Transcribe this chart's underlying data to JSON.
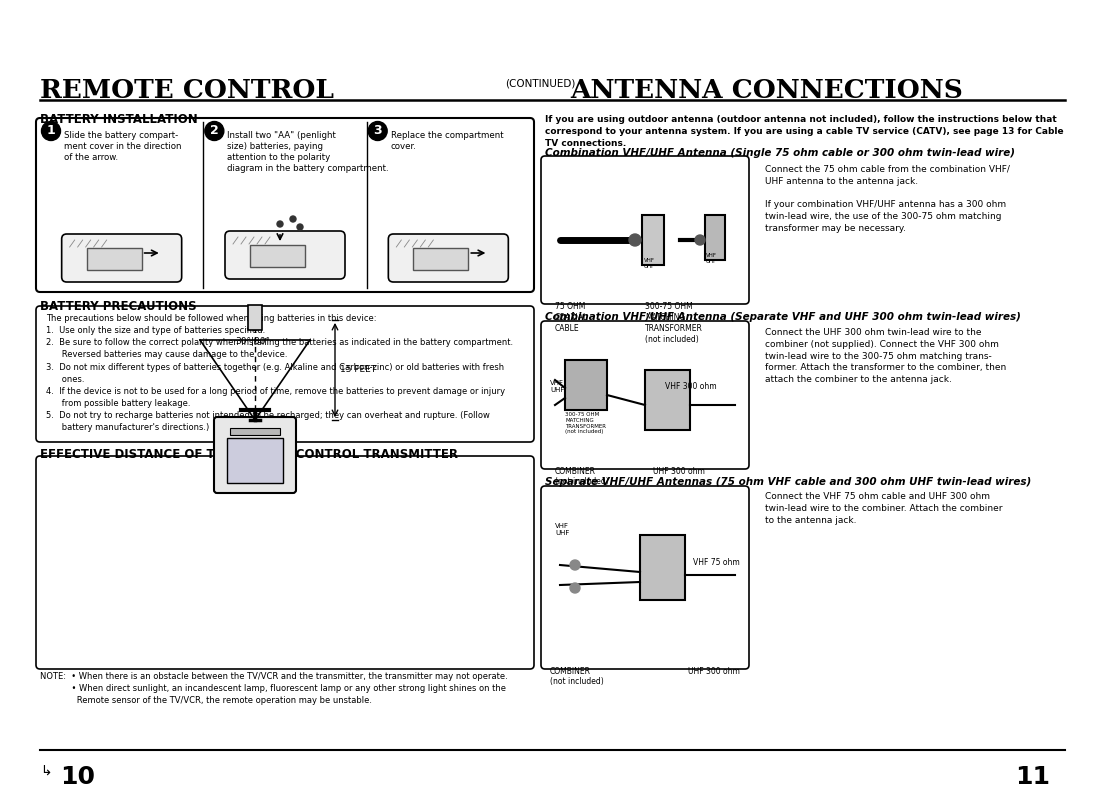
{
  "bg_color": "#ffffff",
  "page_left_num": "10",
  "page_right_num": "11",
  "left_title": "REMOTE CONTROL",
  "continued_text": "(CONTINUED)",
  "right_title": "ANTENNA CONNECTIONS",
  "battery_install_title": "BATTERY INSTALLATION",
  "step1_num": "1",
  "step1_text": "Slide the battery compart-\nment cover in the direction\nof the arrow.",
  "step2_num": "2",
  "step2_text": "Install two \"AA\" (penlight\nsize) batteries, paying\nattention to the polarity\ndiagram in the battery compartment.",
  "step3_num": "3",
  "step3_text": "Replace the compartment\ncover.",
  "battery_precautions_title": "BATTERY PRECAUTIONS",
  "precautions_intro": "The precautions below should be followed when using batteries in this device:",
  "precaution1": "1.  Use only the size and type of batteries specified.",
  "precaution2": "2.  Be sure to follow the correct polarity when installing the batteries as indicated in the battery compartment.\n      Reversed batteries may cause damage to the device.",
  "precaution3": "3.  Do not mix different types of batteries together (e.g. Alkaline and Carbon-zinc) or old batteries with fresh\n      ones.",
  "precaution4": "4.  If the device is not to be used for a long period of time, remove the batteries to prevent damage or injury\n      from possible battery leakage.",
  "precaution5": "5.  Do not try to recharge batteries not intended to be recharged; they can overheat and rupture. (Follow\n      battery manufacturer's directions.)",
  "effective_distance_title": "EFFECTIVE DISTANCE OF THE REMOTE CONTROL TRANSMITTER",
  "note_text": "NOTE:  • When there is an obstacle between the TV/VCR and the transmitter, the transmitter may not operate.\n            • When direct sunlight, an incandescent lamp, fluorescent lamp or any other strong light shines on the\n              Remote sensor of the TV/VCR, the remote operation may be unstable.",
  "angle_text": "30°|30°",
  "feet_text": "15 FEET",
  "antenna_intro": "If you are using outdoor antenna (outdoor antenna not included), follow the instructions below that\ncorrespond to your antenna system. If you are using a cable TV service (CATV), see page 13 for Cable\nTV connections.",
  "combo1_title": "Combination VHF/UHF Antenna (Single 75 ohm cable or 300 ohm twin-lead wire)",
  "combo1_desc": "Connect the 75 ohm cable from the combination VHF/\nUHF antenna to the antenna jack.\n\nIf your combination VHF/UHF antenna has a 300 ohm\ntwin-lead wire, the use of the 300-75 ohm matching\ntransformer may be necessary.",
  "cable_label1": "75 OHM\nCOAXIAL\nCABLE",
  "transformer_label1": "300-75 OHM\nMATCHING\nTRANSFORMER\n(not included)",
  "combo2_title": "Combination VHF/UHF Antenna (Separate VHF and UHF 300 ohm twin-lead wires)",
  "combo2_desc": "Connect the UHF 300 ohm twin-lead wire to the\ncombiner (not supplied). Connect the VHF 300 ohm\ntwin-lead wire to the 300-75 ohm matching trans-\nformer. Attach the transformer to the combiner, then\nattach the combiner to the antenna jack.",
  "transformer_label2": "300-75 OHM\nMATCHING\nTRANSFORMER\n(not included)",
  "vhf_uhf_label": "VHF\nUHF",
  "combiner_label": "COMBINER\n(not included)",
  "vhf300_label": "VHF 300 ohm",
  "uhf300_label": "UHF 300 ohm",
  "separate_title": "Separate VHF/UHF Antennas (75 ohm VHF cable and 300 ohm UHF twin-lead wires)",
  "separate_desc": "Connect the VHF 75 ohm cable and UHF 300 ohm\ntwin-lead wire to the combiner. Attach the combiner\nto the antenna jack.",
  "combiner_label2": "COMBINER\n(not included)",
  "vhf75_label": "VHF 75 ohm",
  "uhf300_label2": "UHF 300 ohm",
  "vhf_uhf_label2": "VHF\nUHF"
}
